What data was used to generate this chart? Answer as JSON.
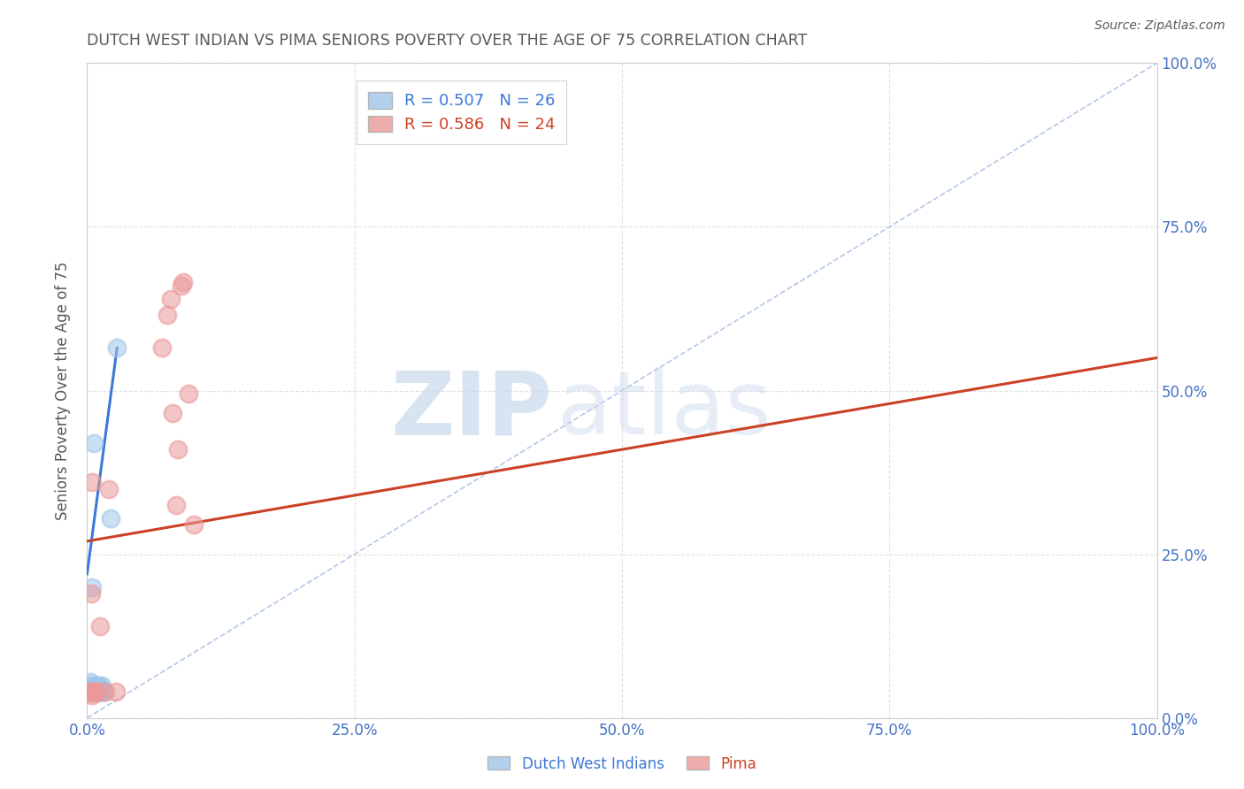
{
  "title": "DUTCH WEST INDIAN VS PIMA SENIORS POVERTY OVER THE AGE OF 75 CORRELATION CHART",
  "source": "Source: ZipAtlas.com",
  "ylabel": "Seniors Poverty Over the Age of 75",
  "xlim": [
    0,
    1.0
  ],
  "ylim": [
    0,
    1.0
  ],
  "xticks": [
    0.0,
    0.25,
    0.5,
    0.75,
    1.0
  ],
  "yticks": [
    0.0,
    0.25,
    0.5,
    0.75,
    1.0
  ],
  "xticklabels": [
    "0.0%",
    "25.0%",
    "50.0%",
    "75.0%",
    "100.0%"
  ],
  "yticklabels_right": [
    "0.0%",
    "25.0%",
    "50.0%",
    "75.0%",
    "100.0%"
  ],
  "blue_scatter_x": [
    0.003,
    0.003,
    0.004,
    0.004,
    0.005,
    0.005,
    0.005,
    0.006,
    0.006,
    0.006,
    0.007,
    0.007,
    0.008,
    0.008,
    0.009,
    0.009,
    0.01,
    0.01,
    0.011,
    0.012,
    0.012,
    0.013,
    0.014,
    0.015,
    0.022,
    0.028
  ],
  "blue_scatter_y": [
    0.04,
    0.055,
    0.04,
    0.05,
    0.04,
    0.045,
    0.2,
    0.04,
    0.045,
    0.42,
    0.04,
    0.045,
    0.04,
    0.05,
    0.04,
    0.05,
    0.04,
    0.05,
    0.04,
    0.04,
    0.045,
    0.04,
    0.05,
    0.04,
    0.305,
    0.565
  ],
  "pink_scatter_x": [
    0.003,
    0.004,
    0.004,
    0.005,
    0.005,
    0.005,
    0.006,
    0.007,
    0.008,
    0.009,
    0.012,
    0.017,
    0.02,
    0.027,
    0.07,
    0.075,
    0.078,
    0.08,
    0.083,
    0.085,
    0.088,
    0.09,
    0.095,
    0.1
  ],
  "pink_scatter_y": [
    0.04,
    0.04,
    0.19,
    0.035,
    0.04,
    0.36,
    0.04,
    0.04,
    0.04,
    0.04,
    0.14,
    0.04,
    0.35,
    0.04,
    0.565,
    0.615,
    0.64,
    0.465,
    0.325,
    0.41,
    0.66,
    0.665,
    0.495,
    0.295
  ],
  "blue_line_x": [
    0.0,
    0.028
  ],
  "blue_line_y": [
    0.22,
    0.565
  ],
  "pink_line_x": [
    0.0,
    1.0
  ],
  "pink_line_y": [
    0.27,
    0.55
  ],
  "diag_line_x": [
    0.0,
    1.0
  ],
  "diag_line_y": [
    0.0,
    1.0
  ],
  "legend_blue_r": "R = 0.507",
  "legend_blue_n": "N = 26",
  "legend_pink_r": "R = 0.586",
  "legend_pink_n": "N = 24",
  "blue_color": "#9fc5e8",
  "pink_color": "#ea9999",
  "blue_line_color": "#3c78d8",
  "pink_line_color": "#cc4125",
  "diag_color": "#b4c7e7",
  "watermark_zip": "ZIP",
  "watermark_atlas": "atlas",
  "bg_color": "#ffffff",
  "grid_color": "#e0e0e0",
  "axis_color": "#cccccc",
  "tick_label_color": "#4472c4",
  "title_color": "#595959"
}
